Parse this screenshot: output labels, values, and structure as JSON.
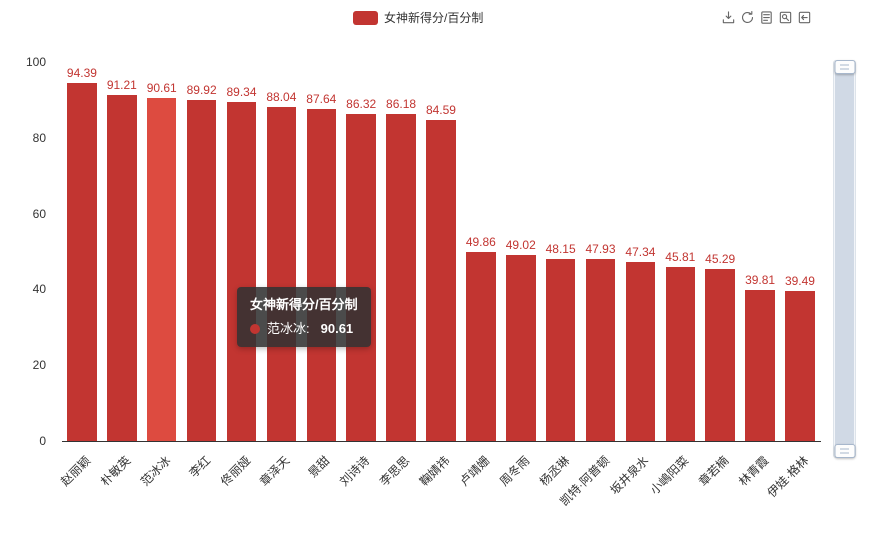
{
  "legend": {
    "label": "女神新得分/百分制",
    "swatch_color": "#c23531"
  },
  "toolbox": {
    "buttons": [
      {
        "name": "save-as-image"
      },
      {
        "name": "restore"
      },
      {
        "name": "data-view"
      },
      {
        "name": "data-zoom"
      },
      {
        "name": "data-zoom-reset"
      }
    ]
  },
  "chart_data": {
    "type": "bar",
    "title": "",
    "series_name": "女神新得分/百分制",
    "categories": [
      "赵丽颖",
      "朴敏英",
      "范冰冰",
      "李红",
      "佟丽娅",
      "章泽天",
      "景甜",
      "刘诗诗",
      "李思思",
      "鞠婧祎",
      "卢靖姗",
      "周冬雨",
      "杨丞琳",
      "凯特·阿普顿",
      "坂井泉水",
      "小嶋阳菜",
      "章若楠",
      "林青霞",
      "伊娃·格林"
    ],
    "values": [
      94.39,
      91.21,
      90.61,
      89.92,
      89.34,
      88.04,
      87.64,
      86.32,
      86.18,
      84.59,
      49.86,
      49.02,
      48.15,
      47.93,
      47.34,
      45.81,
      45.29,
      39.81,
      39.49
    ],
    "xlabel": "",
    "ylabel": "",
    "ylim": [
      0,
      100
    ],
    "yticks": [
      0,
      20,
      40,
      60,
      80,
      100
    ],
    "grid": false,
    "legend_position": "top-center",
    "bar_color": "#c23531",
    "highlight_color": "#dd4b40",
    "highlight_index": 2,
    "value_label_color": "#c23531",
    "axis_label_color": "#333333"
  },
  "tooltip": {
    "title": "女神新得分/百分制",
    "series_label": "范冰冰:",
    "value": "90.61",
    "marker_color": "#c23531"
  }
}
